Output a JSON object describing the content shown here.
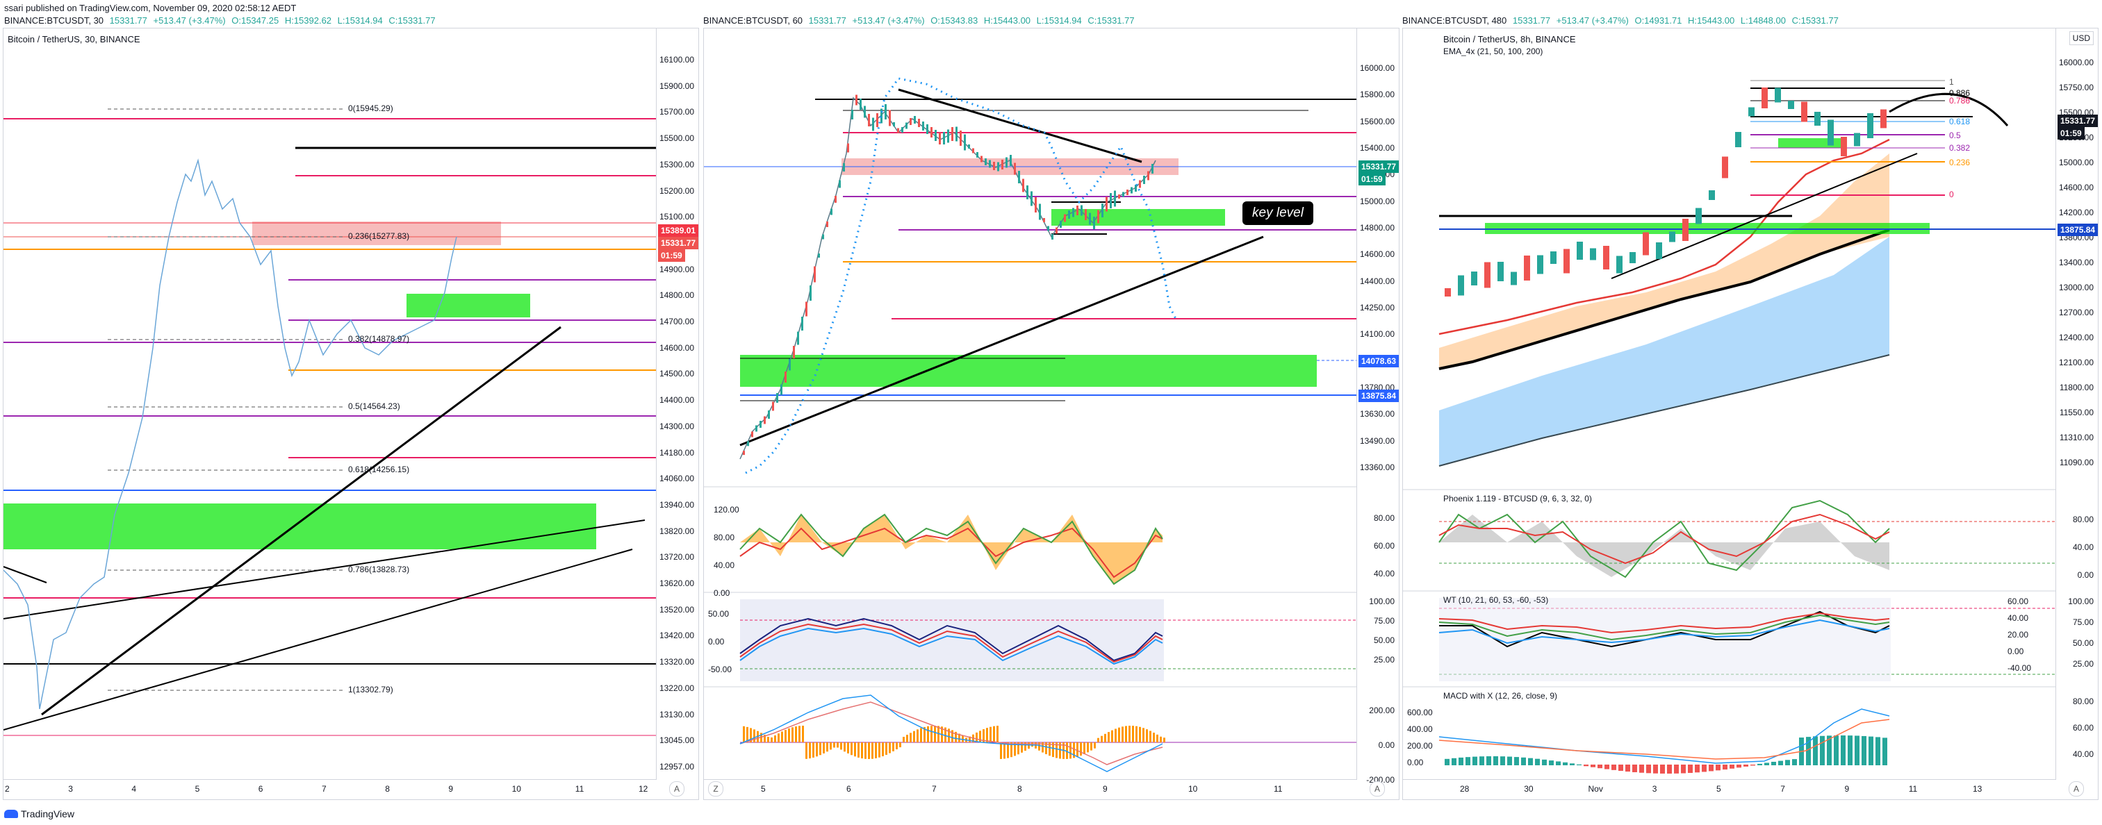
{
  "publish_line": "ssari published on TradingView.com, November 09, 2020 02:58:12 AEDT",
  "panels": [
    {
      "header": {
        "symbol": "BINANCE:BTCUSDT, 30",
        "last": "15331.77",
        "change": "+513.47 (+3.47%)",
        "o": "O:15347.25",
        "h": "H:15392.62",
        "l": "L:15314.94",
        "c": "C:15331.77"
      },
      "title": "Bitcoin / TetherUS, 30, BINANCE",
      "price_ticks": [
        "16100.00",
        "15900.00",
        "15700.00",
        "15500.00",
        "15300.00",
        "15200.00",
        "15100.00",
        "15000.00",
        "14900.00",
        "14800.00",
        "14700.00",
        "14600.00",
        "14500.00",
        "14400.00",
        "14300.00",
        "14180.00",
        "14060.00",
        "13940.00",
        "13820.00",
        "13720.00",
        "13620.00",
        "13520.00",
        "13420.00",
        "13320.00",
        "13220.00",
        "13130.00",
        "13045.00",
        "12957.00"
      ],
      "tags": [
        {
          "text": "15389.01",
          "color": "#f23645"
        },
        {
          "text": "15331.77",
          "color": "#ef5350"
        },
        {
          "text": "01:59",
          "color": "#ef5350"
        }
      ],
      "time_ticks": [
        "2",
        "3",
        "4",
        "5",
        "6",
        "7",
        "8",
        "9",
        "10",
        "11",
        "12"
      ],
      "fib_labels": [
        "0(15945.29)",
        "0.236(15277.83)",
        "0.382(14878.97)",
        "0.5(14564.23)",
        "0.618(14256.15)",
        "0.786(13828.73)",
        "1(13302.79)"
      ],
      "axis_btn": "A"
    },
    {
      "header": {
        "symbol": "BINANCE:BTCUSDT, 60",
        "last": "15331.77",
        "change": "+513.47 (+3.47%)",
        "o": "O:15343.83",
        "h": "H:15443.00",
        "l": "L:15314.94",
        "c": "C:15331.77"
      },
      "price_ticks": [
        "16000.00",
        "15800.00",
        "15600.00",
        "15400.00",
        "15200.00",
        "15000.00",
        "14800.00",
        "14600.00",
        "14400.00",
        "14250.00",
        "14100.00",
        "13940.00",
        "13780.00",
        "13630.00",
        "13490.00",
        "13360.00"
      ],
      "tags": [
        {
          "text": "15331.77",
          "color": "#089981"
        },
        {
          "text": "01:59",
          "color": "#089981"
        },
        {
          "text": "14078.63",
          "color": "#2962ff"
        },
        {
          "text": "13875.84",
          "color": "#2962ff"
        }
      ],
      "osc1_ticks": [
        "80.00",
        "60.00",
        "40.00"
      ],
      "osc1_left": [
        "120.00",
        "80.00",
        "40.00",
        "0.00"
      ],
      "osc2_ticks": [
        "100.00",
        "75.00",
        "50.00",
        "25.00"
      ],
      "osc2_left": [
        "50.00",
        "0.00",
        "-50.00"
      ],
      "macd_ticks": [
        "200.00",
        "0.00",
        "-200.00"
      ],
      "time_ticks": [
        "5",
        "6",
        "7",
        "8",
        "9",
        "10",
        "11"
      ],
      "callout": "key level",
      "axis_btn": "A",
      "zoom_btn": "Z"
    },
    {
      "header": {
        "symbol": "BINANCE:BTCUSDT, 480",
        "last": "15331.77",
        "change": "+513.47 (+3.47%)",
        "o": "O:14931.71",
        "h": "H:15443.00",
        "l": "L:14848.00",
        "c": "C:15331.77"
      },
      "title": "Bitcoin / TetherUS, 8h, BINANCE",
      "ema_label": "EMA_4x (21, 50, 100, 200)",
      "currency": "USD",
      "price_ticks": [
        "16000.00",
        "15750.00",
        "15500.00",
        "15250.00",
        "15000.00",
        "14600.00",
        "14200.00",
        "13800.00",
        "13400.00",
        "13000.00",
        "12700.00",
        "12400.00",
        "12100.00",
        "11800.00",
        "11550.00",
        "11310.00",
        "11090.00"
      ],
      "tags": [
        {
          "text": "15331.77",
          "color": "#131722"
        },
        {
          "text": "01:59",
          "color": "#131722"
        },
        {
          "text": "13875.84",
          "color": "#1848cc"
        }
      ],
      "fib_small": [
        "1",
        "0.886",
        "0.786",
        "0.618",
        "0.5",
        "0.382",
        "0.236",
        "0"
      ],
      "phoenix_title": "Phoenix 1.119 - BTCUSD (9, 6, 3, 32, 0)",
      "phoenix_ticks": [
        "80.00",
        "40.00",
        "0.00"
      ],
      "wt_title": "WT (10, 21, 60, 53, -60, -53)",
      "wt_right": [
        "100.00",
        "75.00",
        "50.00",
        "25.00"
      ],
      "wt_left": [
        "60.00",
        "40.00",
        "20.00",
        "0.00",
        "-40.00"
      ],
      "macd_title": "MACD with X (12, 26, close, 9)",
      "macd_left": [
        "600.00",
        "400.00",
        "200.00",
        "0.00"
      ],
      "macd_right": [
        "80.00",
        "60.00",
        "40.00"
      ],
      "time_ticks": [
        "28",
        "30",
        "Nov",
        "3",
        "5",
        "7",
        "9",
        "11",
        "13"
      ],
      "axis_btn": "A"
    }
  ],
  "footer_logo": "TradingView",
  "colors": {
    "bull": "#26a69a",
    "bear": "#ef5350",
    "green_zone": "#00e600",
    "red_zone": "#f4a6a6",
    "fib_orange": "#ff9800",
    "fib_purple": "#9c27b0",
    "fib_red": "#e91e63",
    "blue_line": "#2962ff"
  }
}
